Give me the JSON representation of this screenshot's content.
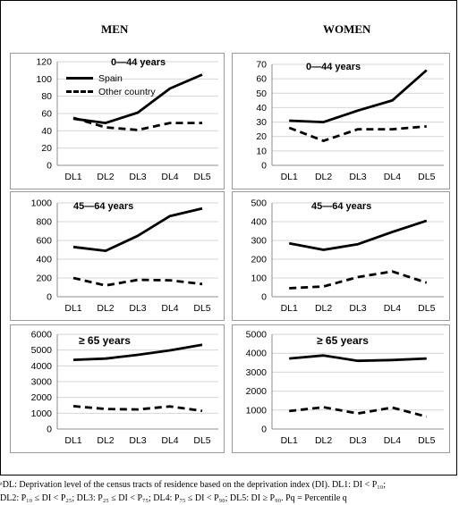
{
  "column_titles": {
    "men": "MEN",
    "women": "WOMEN"
  },
  "footnote": {
    "line1": "ᵃDL: Deprivation level of the census tracts of residence based on the deprivation index (DI). DL1: DI < P₁₀;",
    "line2": "DL2: P₁₀ ≤ DI < P₂₅; DL3: P₂₅ ≤ DI < P₇₅; DL4: P₇₅ ≤ DI < P₉₀; DL5: DI ≥ P₉₀. Pq = Percentile q"
  },
  "colors": {
    "series": "#000000",
    "axis": "#8c8c8c",
    "grid": "#d4d4d4"
  },
  "chart_data": [
    {
      "type": "line",
      "panel": "men-0-44",
      "title": "0—44 years",
      "categories": [
        "DL1",
        "DL2",
        "DL3",
        "DL4",
        "DL5"
      ],
      "ylim": [
        0,
        120
      ],
      "yticks": [
        0,
        20,
        40,
        60,
        80,
        100,
        120
      ],
      "grid": true,
      "legend": "top-left",
      "series": [
        {
          "name": "Spain",
          "style": "solid",
          "values": [
            54,
            49,
            61,
            89,
            105
          ]
        },
        {
          "name": "Other country",
          "style": "dashed",
          "values": [
            55,
            44,
            41,
            49,
            49
          ]
        }
      ]
    },
    {
      "type": "line",
      "panel": "women-0-44",
      "title": "0—44 years",
      "categories": [
        "DL1",
        "DL2",
        "DL3",
        "DL4",
        "DL5"
      ],
      "ylim": [
        0,
        70
      ],
      "yticks": [
        0,
        10,
        20,
        30,
        40,
        50,
        60,
        70
      ],
      "grid": true,
      "series": [
        {
          "style": "solid",
          "values": [
            31,
            30,
            38,
            45,
            66
          ]
        },
        {
          "style": "dashed",
          "values": [
            26,
            17,
            25,
            25,
            27
          ]
        }
      ]
    },
    {
      "type": "line",
      "panel": "men-45-64",
      "title": "45—64 years",
      "categories": [
        "DL1",
        "DL2",
        "DL3",
        "DL4",
        "DL5"
      ],
      "ylim": [
        0,
        1000
      ],
      "yticks": [
        0,
        200,
        400,
        600,
        800,
        1000
      ],
      "grid": true,
      "series": [
        {
          "style": "solid",
          "values": [
            530,
            490,
            650,
            860,
            940
          ]
        },
        {
          "style": "dashed",
          "values": [
            200,
            120,
            180,
            175,
            135
          ]
        }
      ]
    },
    {
      "type": "line",
      "panel": "women-45-64",
      "title": "45—64 years",
      "categories": [
        "DL1",
        "DL2",
        "DL3",
        "DL4",
        "DL5"
      ],
      "ylim": [
        0,
        500
      ],
      "yticks": [
        0,
        100,
        200,
        300,
        400,
        500
      ],
      "grid": true,
      "series": [
        {
          "style": "solid",
          "values": [
            285,
            250,
            280,
            345,
            405
          ]
        },
        {
          "style": "dashed",
          "values": [
            45,
            55,
            105,
            135,
            75
          ]
        }
      ]
    },
    {
      "type": "line",
      "panel": "men-65",
      "title": "≥ 65 years",
      "categories": [
        "DL1",
        "DL2",
        "DL3",
        "DL4",
        "DL5"
      ],
      "ylim": [
        0,
        6000
      ],
      "yticks": [
        0,
        1000,
        2000,
        3000,
        4000,
        5000,
        6000
      ],
      "grid": true,
      "series": [
        {
          "style": "solid",
          "values": [
            4380,
            4460,
            4700,
            4980,
            5340
          ]
        },
        {
          "style": "dashed",
          "values": [
            1450,
            1270,
            1240,
            1430,
            1150
          ]
        }
      ]
    },
    {
      "type": "line",
      "panel": "women-65",
      "title": "≥ 65  years",
      "categories": [
        "DL1",
        "DL2",
        "DL3",
        "DL4",
        "DL5"
      ],
      "ylim": [
        0,
        5000
      ],
      "yticks": [
        0,
        1000,
        2000,
        3000,
        4000,
        5000
      ],
      "grid": true,
      "series": [
        {
          "style": "solid",
          "values": [
            3720,
            3880,
            3600,
            3640,
            3720
          ]
        },
        {
          "style": "dashed",
          "values": [
            950,
            1150,
            820,
            1130,
            650
          ]
        }
      ]
    }
  ]
}
